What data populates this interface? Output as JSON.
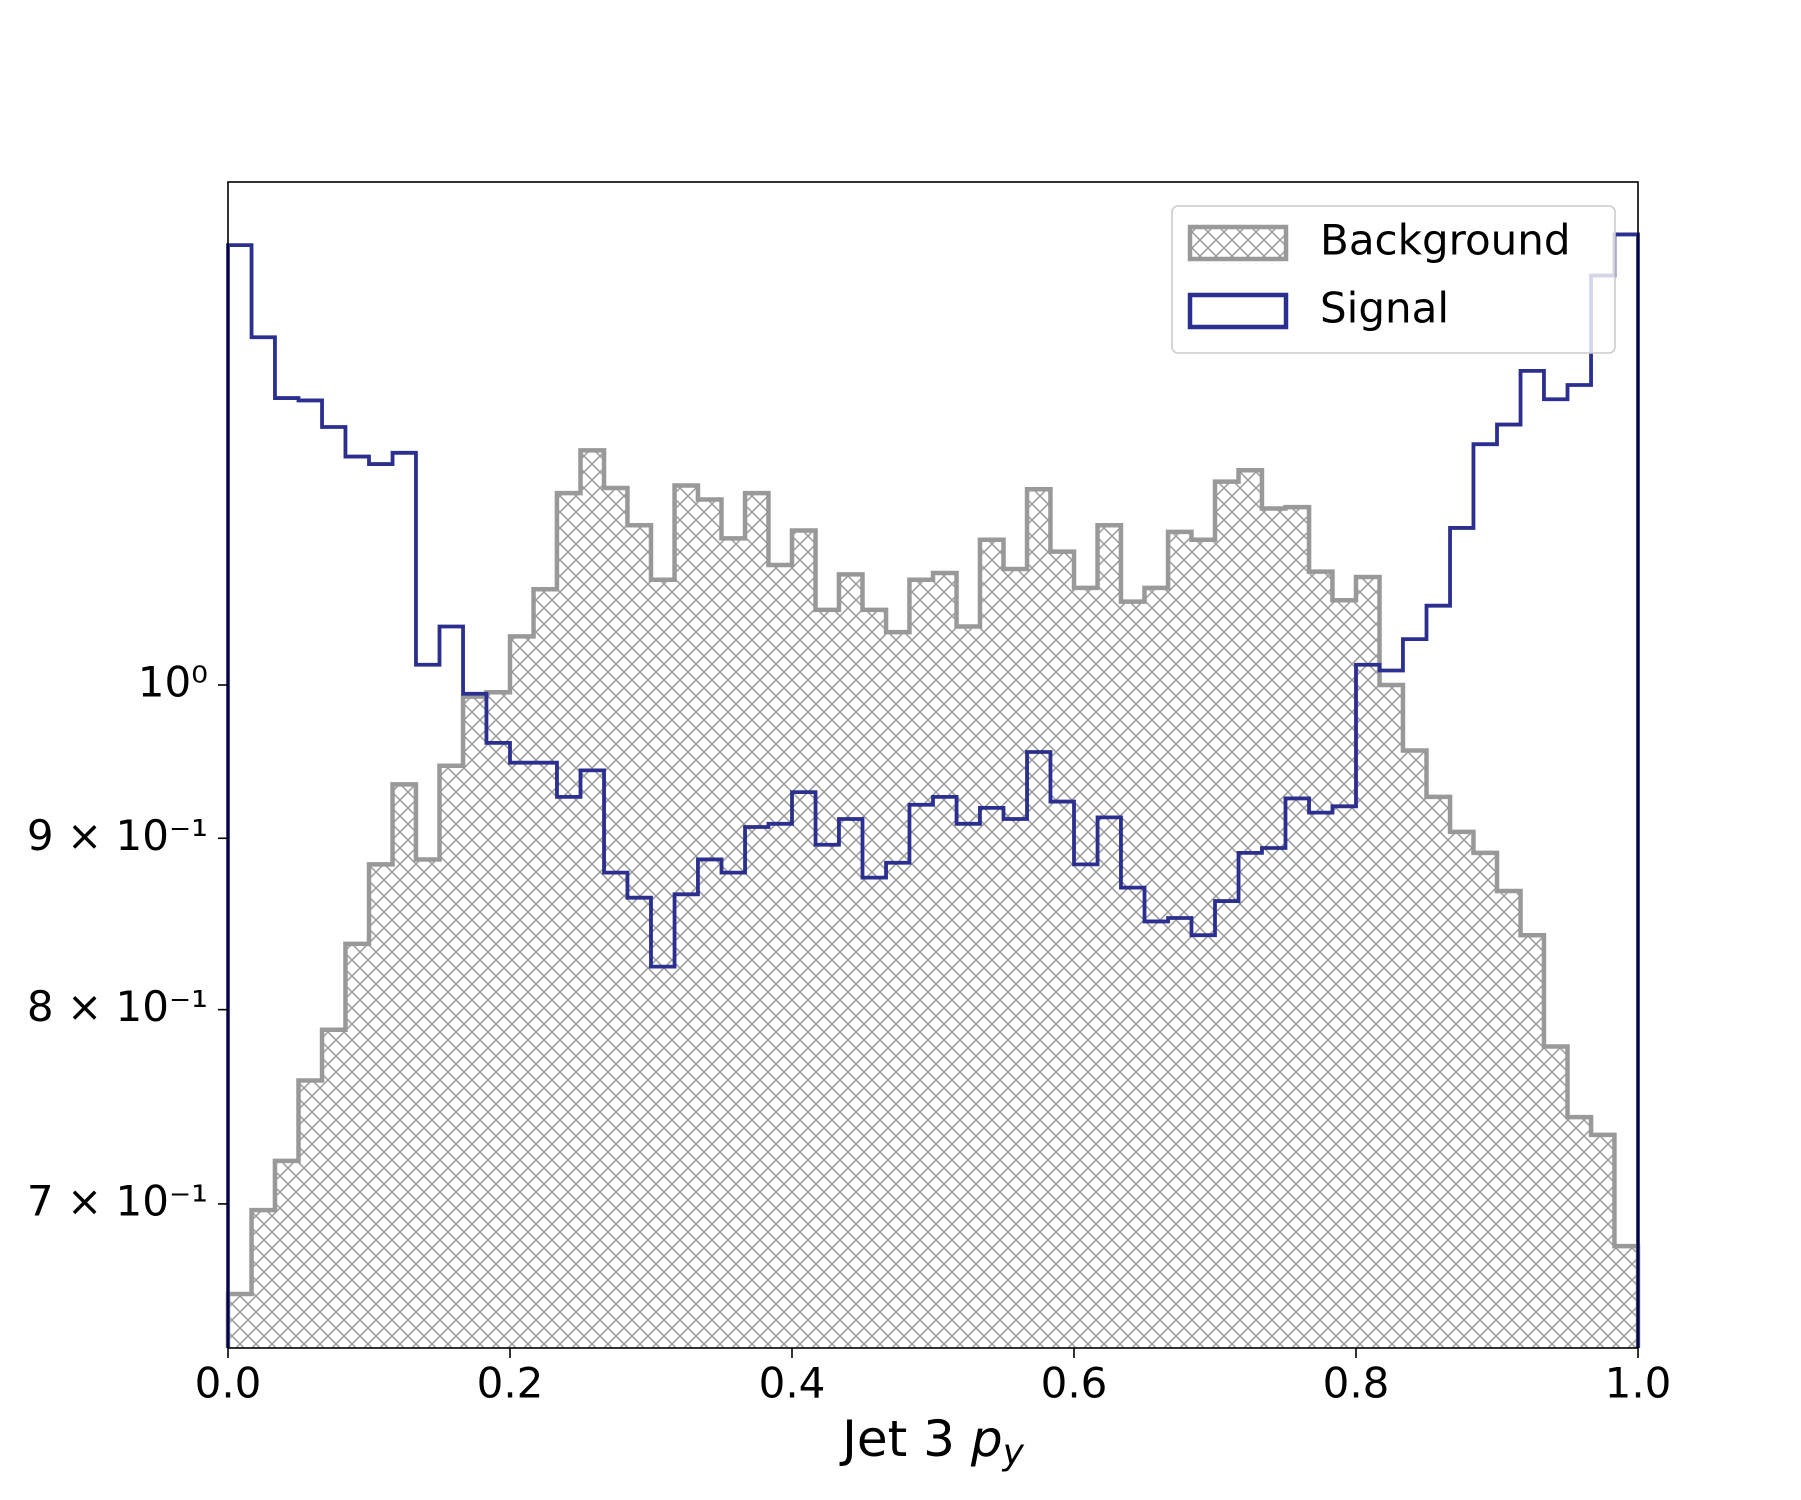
{
  "chart_data": {
    "type": "histogram",
    "xlabel": {
      "text": "Jet 3",
      "var": "p",
      "sub": "y"
    },
    "bins": [
      0,
      0.0167,
      0.0333,
      0.05,
      0.0667,
      0.0833,
      0.1,
      0.1167,
      0.1333,
      0.15,
      0.1667,
      0.1833,
      0.2,
      0.2167,
      0.2333,
      0.25,
      0.2667,
      0.2833,
      0.3,
      0.3167,
      0.3333,
      0.35,
      0.3667,
      0.3833,
      0.4,
      0.4167,
      0.4333,
      0.45,
      0.4667,
      0.4833,
      0.5,
      0.5167,
      0.5333,
      0.55,
      0.5667,
      0.5833,
      0.6,
      0.6167,
      0.6333,
      0.65,
      0.6667,
      0.6833,
      0.7,
      0.7167,
      0.7333,
      0.75,
      0.7667,
      0.7833,
      0.8,
      0.8167,
      0.8333,
      0.85,
      0.8667,
      0.8833,
      0.9,
      0.9167,
      0.9333,
      0.95,
      0.9667,
      0.9833,
      1
    ],
    "series": [
      {
        "name": "Background",
        "color": "#999999",
        "style": "hatch",
        "values": [
          0.658,
          0.697,
          0.721,
          0.762,
          0.789,
          0.837,
          0.884,
          0.934,
          0.887,
          0.946,
          0.992,
          0.995,
          1.034,
          1.068,
          1.141,
          1.175,
          1.145,
          1.116,
          1.075,
          1.147,
          1.136,
          1.106,
          1.141,
          1.086,
          1.112,
          1.053,
          1.079,
          1.053,
          1.037,
          1.075,
          1.08,
          1.041,
          1.105,
          1.083,
          1.144,
          1.096,
          1.069,
          1.116,
          1.059,
          1.069,
          1.111,
          1.105,
          1.15,
          1.159,
          1.129,
          1.13,
          1.081,
          1.06,
          1.077,
          1.0,
          0.956,
          0.926,
          0.904,
          0.891,
          0.868,
          0.842,
          0.78,
          0.743,
          0.734,
          0.68
        ]
      },
      {
        "name": "Signal",
        "color": "#2b2f8f",
        "style": "step",
        "values": [
          1.353,
          1.27,
          1.218,
          1.216,
          1.194,
          1.17,
          1.164,
          1.173,
          1.014,
          1.041,
          0.994,
          0.961,
          0.948,
          0.948,
          0.926,
          0.943,
          0.879,
          0.864,
          0.824,
          0.866,
          0.887,
          0.879,
          0.907,
          0.909,
          0.929,
          0.896,
          0.912,
          0.876,
          0.885,
          0.921,
          0.926,
          0.909,
          0.919,
          0.912,
          0.955,
          0.923,
          0.884,
          0.913,
          0.87,
          0.85,
          0.852,
          0.842,
          0.862,
          0.891,
          0.894,
          0.925,
          0.916,
          0.92,
          1.014,
          1.01,
          1.032,
          1.056,
          1.114,
          1.18,
          1.196,
          1.241,
          1.217,
          1.229,
          1.325,
          1.363
        ]
      }
    ],
    "xlim": [
      0,
      1
    ],
    "xticks": [
      {
        "value": 0,
        "label": "0.0"
      },
      0.2,
      0.4,
      0.6,
      0.8,
      {
        "value": 1,
        "label": "1.0"
      }
    ],
    "ylim": [
      0.634,
      1.413
    ],
    "yscale": "log",
    "yticks": [
      {
        "value": 0.7,
        "label": "7 × 10⁻¹"
      },
      {
        "value": 0.8,
        "label": "8 × 10⁻¹"
      },
      {
        "value": 0.9,
        "label": "9 × 10⁻¹"
      },
      {
        "value": 1,
        "label": "10⁰"
      }
    ],
    "legend": "upper right"
  }
}
